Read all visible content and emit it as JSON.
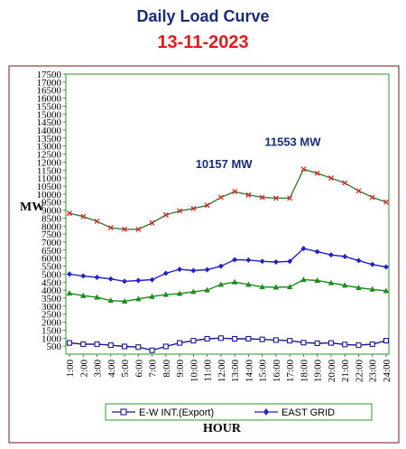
{
  "chart_data": {
    "type": "line",
    "title": "Daily Load Curve",
    "subtitle": "13-11-2023",
    "xlabel": "HOUR",
    "ylabel": "MW",
    "ylim": [
      0,
      17500
    ],
    "yticks": [
      500,
      1000,
      1500,
      2000,
      2500,
      3000,
      3500,
      4000,
      4500,
      5000,
      5500,
      6000,
      6500,
      7000,
      7500,
      8000,
      8500,
      9000,
      9500,
      10000,
      10500,
      11000,
      11500,
      12000,
      12500,
      13000,
      13500,
      14000,
      14500,
      15000,
      15500,
      16000,
      16500,
      17000,
      17500
    ],
    "y_tick_labels": [
      "500",
      "1000",
      "1500",
      "2000",
      "2500",
      "3000",
      "3500",
      "4000",
      "4500",
      "5000",
      "5500",
      "6000",
      "6500",
      "7000",
      "7500",
      "8000",
      "8500",
      "9000",
      "9500",
      "10000",
      "10500",
      "11000",
      "11500",
      "12000",
      "12500",
      "13000",
      "13500",
      "14000",
      "14500",
      "15000",
      "15500",
      "16000",
      "16500",
      "17000",
      "17500"
    ],
    "categories": [
      "1:00",
      "2:00",
      "3:00",
      "4:00",
      "5:00",
      "6:00",
      "7:00",
      "8:00",
      "9:00",
      "10:00",
      "11:00",
      "12:00",
      "13:00",
      "14:00",
      "15:00",
      "16:00",
      "17:00",
      "18:00",
      "19:00",
      "20:00",
      "21:00",
      "22:00",
      "23:00",
      "24:00"
    ],
    "series": [
      {
        "name": "E-W INT.(Export)",
        "color": "#1a1a8c",
        "marker": "open-square",
        "values": [
          700,
          620,
          620,
          560,
          480,
          440,
          240,
          480,
          700,
          840,
          960,
          1000,
          960,
          960,
          920,
          880,
          840,
          720,
          680,
          700,
          600,
          560,
          620,
          840
        ]
      },
      {
        "name": "EAST GRID",
        "color": "#2222cc",
        "marker": "diamond",
        "values": [
          5000,
          4880,
          4800,
          4700,
          4550,
          4600,
          4650,
          5050,
          5300,
          5220,
          5280,
          5500,
          5900,
          5880,
          5800,
          5760,
          5800,
          6600,
          6400,
          6200,
          6100,
          5850,
          5600,
          5450
        ]
      },
      {
        "color": "#1a8c1a",
        "marker": "triangle",
        "values": [
          3800,
          3650,
          3550,
          3350,
          3300,
          3450,
          3600,
          3720,
          3780,
          3900,
          4000,
          4350,
          4500,
          4350,
          4200,
          4180,
          4200,
          4650,
          4600,
          4450,
          4300,
          4150,
          4050,
          3950
        ]
      },
      {
        "color": "#3a7a3a",
        "marker": "x",
        "marker_color": "#e02020",
        "values": [
          8800,
          8600,
          8300,
          7900,
          7800,
          7800,
          8200,
          8700,
          8950,
          9100,
          9300,
          9800,
          10157,
          9950,
          9800,
          9750,
          9750,
          11553,
          11300,
          11000,
          10700,
          10200,
          9800,
          9500
        ]
      }
    ],
    "annotations": [
      {
        "text": "10157 MW",
        "x": "13:00",
        "y": 10157
      },
      {
        "text": "11553 MW",
        "x": "18:00",
        "y": 11553
      }
    ],
    "grid": false,
    "legend": "bottom"
  },
  "colors": {
    "plot_border": "#7a1a1a",
    "axes": "#2a9a2a",
    "title": "#1a2b7a",
    "date": "#e01b1b"
  }
}
